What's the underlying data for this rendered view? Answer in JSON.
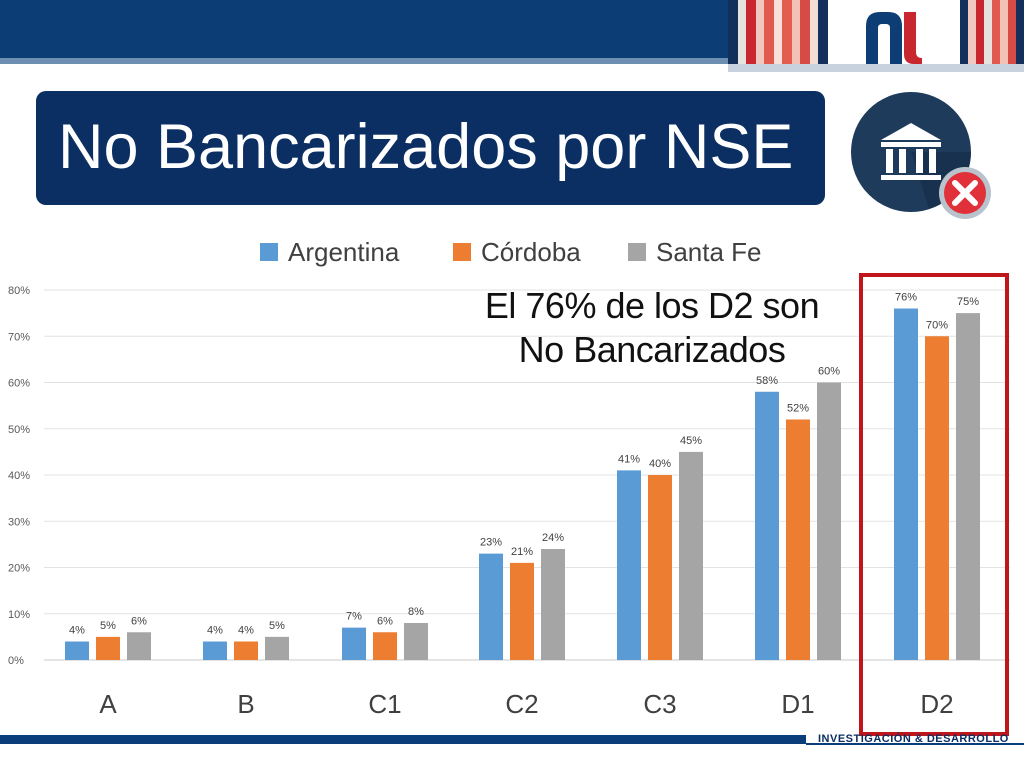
{
  "slide": {
    "title": "No Bancarizados por NSE",
    "callout_line1": "El 76% de los D2 son",
    "callout_line2": "No Bancarizados",
    "footer": "INVESTIGACIÓN & DESARROLLO",
    "brand_icon": "nu-logo-icon",
    "bank_icon": "bank-not-allowed-icon",
    "colors": {
      "title_bg": "#0b2e63",
      "highlight": "#c0151b",
      "footer_bar": "#0b3d7a"
    }
  },
  "chart_data": {
    "type": "bar",
    "categories": [
      "A",
      "B",
      "C1",
      "C2",
      "C3",
      "D1",
      "D2"
    ],
    "series": [
      {
        "name": "Argentina",
        "color": "#5b9bd5",
        "values": [
          4,
          4,
          7,
          23,
          41,
          58,
          76
        ],
        "labels": [
          "4%",
          "4%",
          "7%",
          "23%",
          "41%",
          "58%",
          "76%"
        ]
      },
      {
        "name": "Córdoba",
        "color": "#ed7d31",
        "values": [
          5,
          4,
          6,
          21,
          40,
          52,
          70
        ],
        "labels": [
          "5%",
          "4%",
          "6%",
          "21%",
          "40%",
          "52%",
          "70%"
        ]
      },
      {
        "name": "Santa Fe",
        "color": "#a5a5a5",
        "values": [
          6,
          5,
          8,
          24,
          45,
          60,
          75
        ],
        "labels": [
          "6%",
          "5%",
          "8%",
          "24%",
          "45%",
          "60%",
          "75%"
        ]
      }
    ],
    "y_ticks": [
      "0%",
      "10%",
      "20%",
      "30%",
      "40%",
      "50%",
      "60%",
      "70%",
      "80%"
    ],
    "ylim": [
      0,
      80
    ],
    "grid": true,
    "legend_position": "top",
    "highlighted_category": "D2"
  }
}
